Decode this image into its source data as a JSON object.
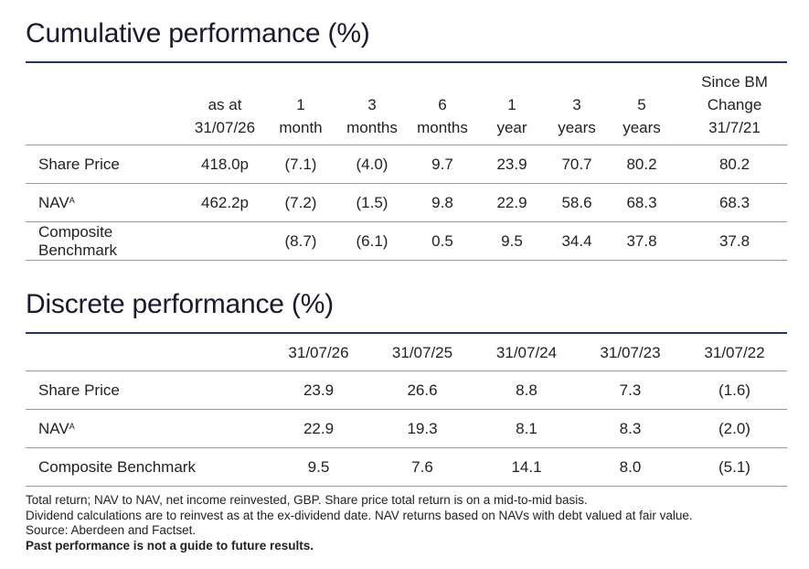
{
  "cumulative": {
    "title": "Cumulative performance (%)",
    "columns": [
      [
        "as at",
        "31/07/26"
      ],
      [
        "1",
        "month"
      ],
      [
        "3",
        "months"
      ],
      [
        "6",
        "months"
      ],
      [
        "1",
        "year"
      ],
      [
        "3",
        "years"
      ],
      [
        "5",
        "years"
      ],
      [
        "Since BM",
        "Change",
        "31/7/21"
      ]
    ],
    "rows": [
      {
        "label": "Share Price",
        "sup": "",
        "values": [
          "418.0p",
          "(7.1)",
          "(4.0)",
          "9.7",
          "23.9",
          "70.7",
          "80.2",
          "80.2"
        ]
      },
      {
        "label": "NAV",
        "sup": "A",
        "values": [
          "462.2p",
          "(7.2)",
          "(1.5)",
          "9.8",
          "22.9",
          "58.6",
          "68.3",
          "68.3"
        ]
      },
      {
        "label": "Composite Benchmark",
        "sup": "",
        "values": [
          "",
          "(8.7)",
          "(6.1)",
          "0.5",
          "9.5",
          "34.4",
          "37.8",
          "37.8"
        ]
      }
    ]
  },
  "discrete": {
    "title": "Discrete performance (%)",
    "columns": [
      "31/07/26",
      "31/07/25",
      "31/07/24",
      "31/07/23",
      "31/07/22"
    ],
    "rows": [
      {
        "label": "Share Price",
        "sup": "",
        "values": [
          "23.9",
          "26.6",
          "8.8",
          "7.3",
          "(1.6)"
        ]
      },
      {
        "label": "NAV",
        "sup": "A",
        "values": [
          "22.9",
          "19.3",
          "8.1",
          "8.3",
          "(2.0)"
        ]
      },
      {
        "label": "Composite Benchmark",
        "sup": "",
        "values": [
          "9.5",
          "7.6",
          "14.1",
          "8.0",
          "(5.1)"
        ]
      }
    ]
  },
  "notes": {
    "line1": "Total return; NAV to NAV, net income reinvested, GBP. Share price total return is on a mid-to-mid basis.",
    "line2": "Dividend calculations are to reinvest as at the ex-dividend date. NAV returns based on NAVs with debt valued at fair value.",
    "line3": "Source: Aberdeen and Factset.",
    "line4": "Past performance is not a guide to future results."
  }
}
